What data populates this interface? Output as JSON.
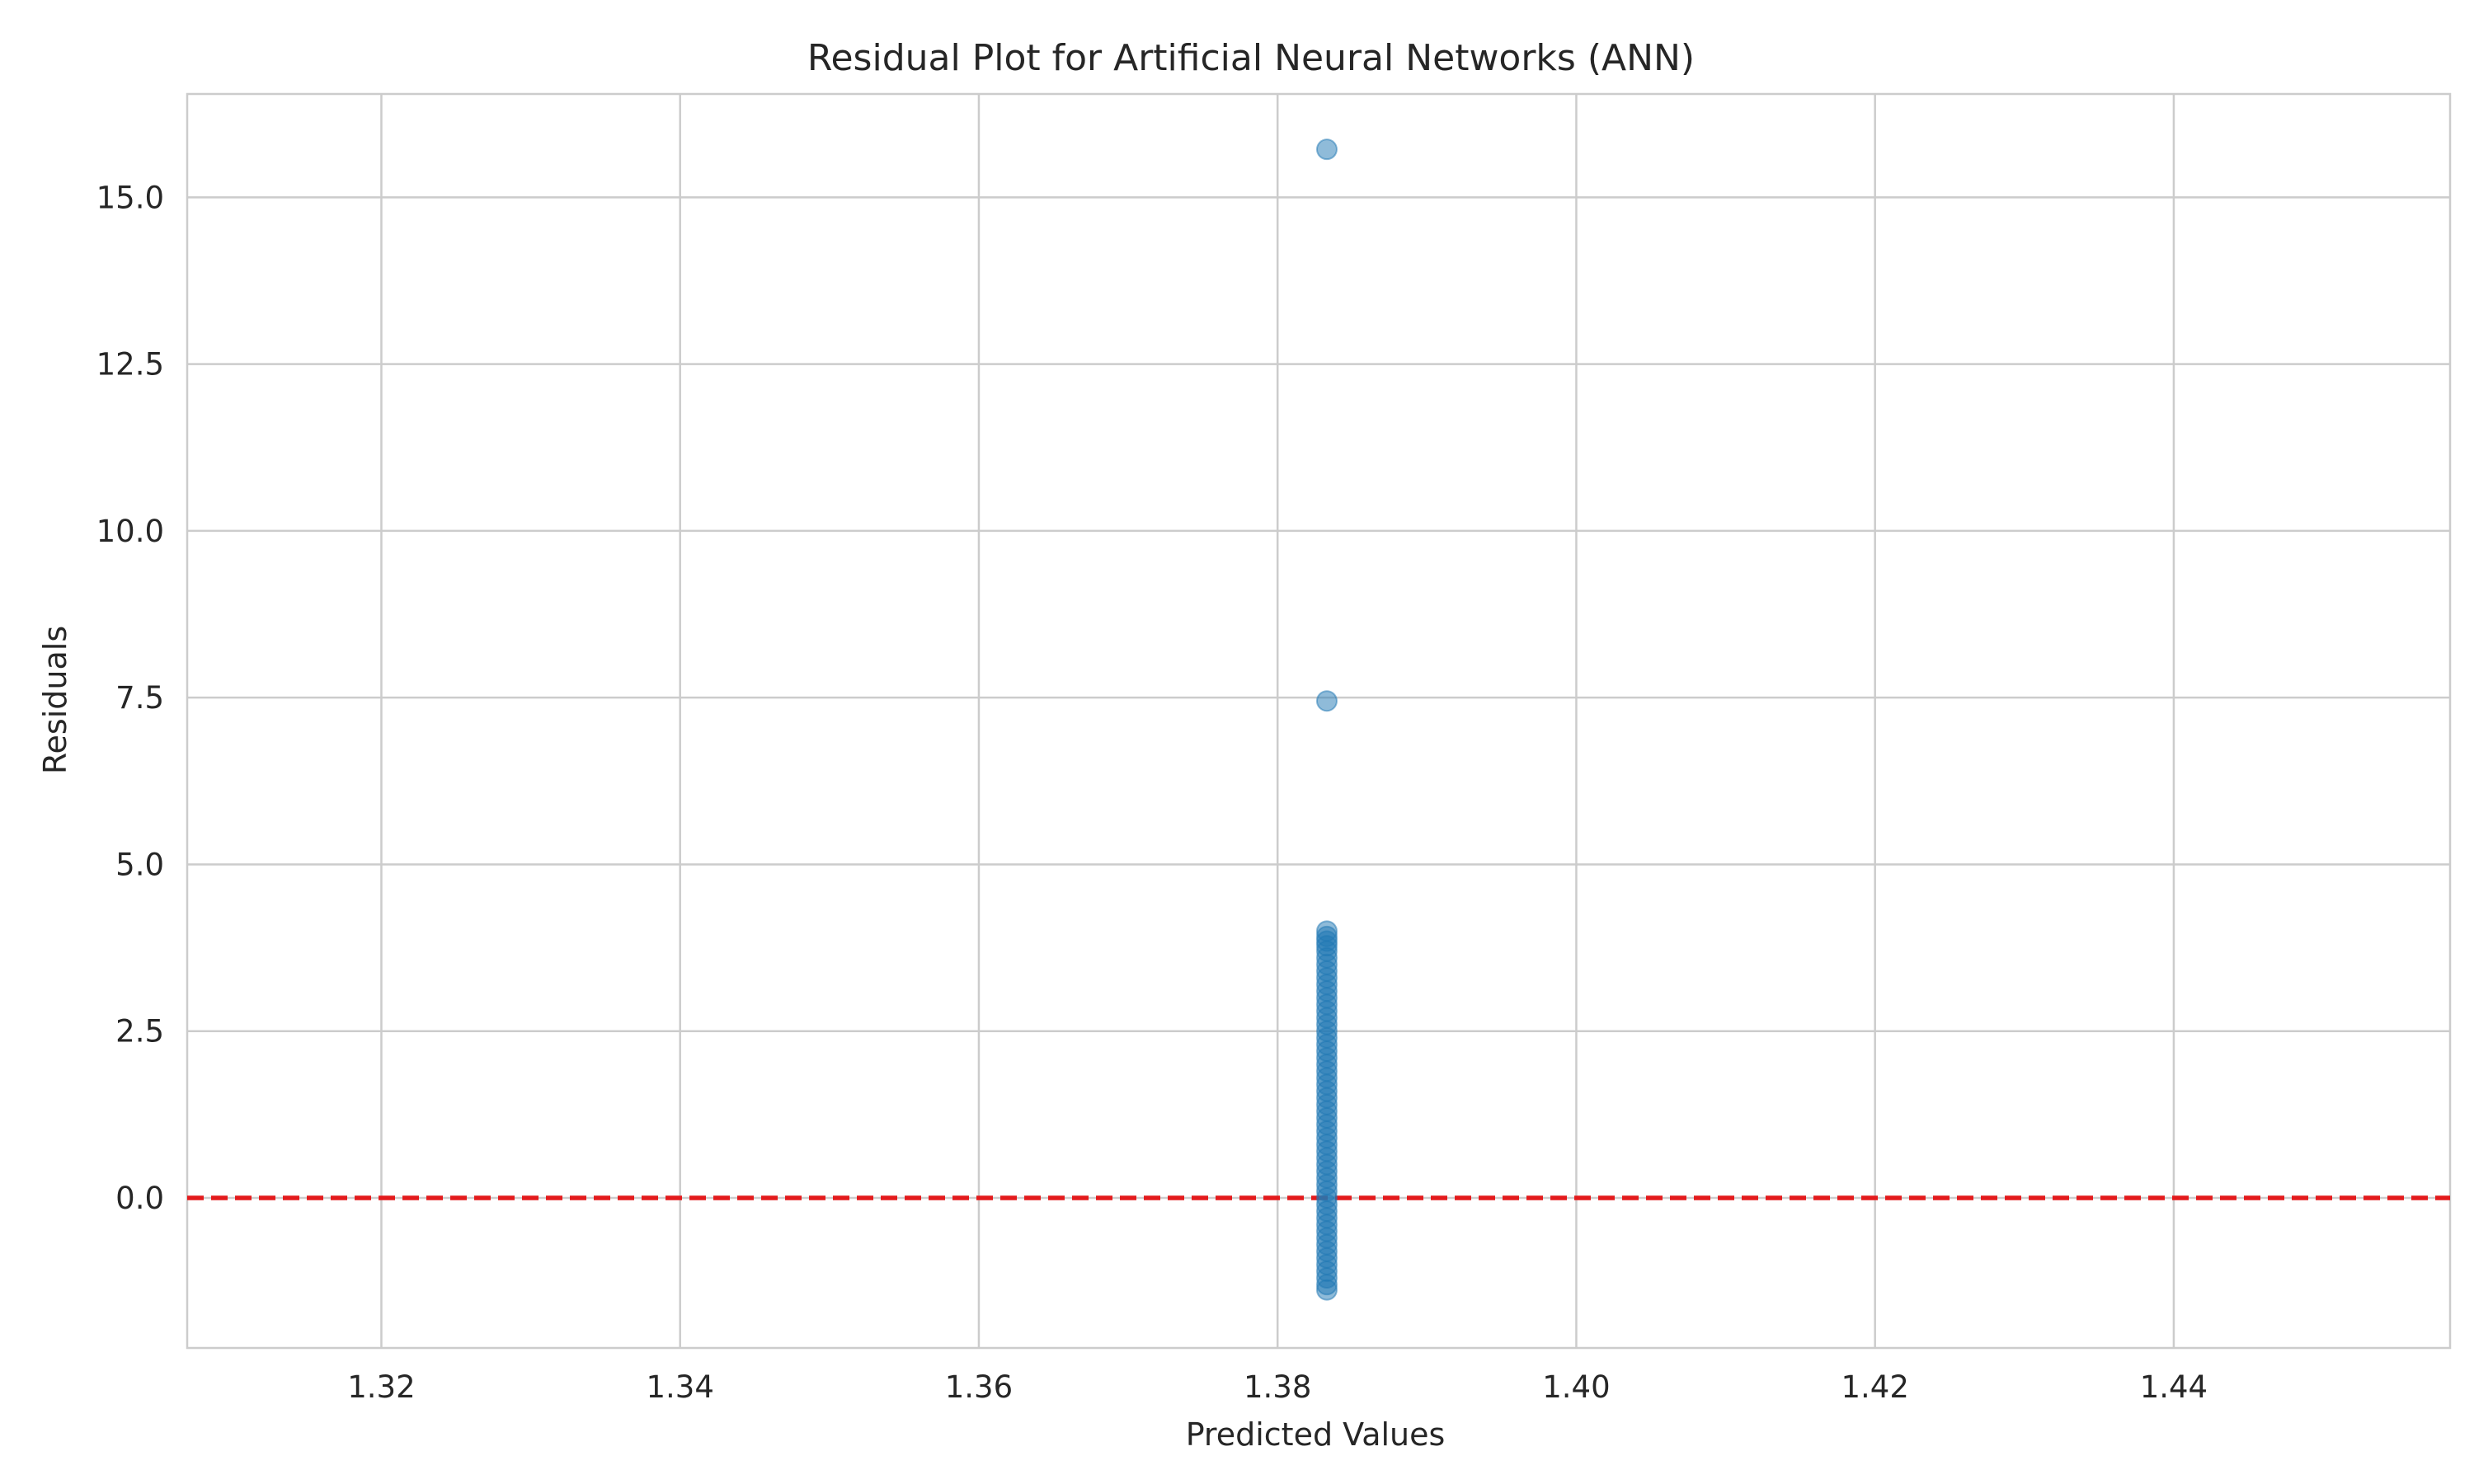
{
  "chart_data": {
    "type": "scatter",
    "title": "Residual Plot for Artificial Neural Networks (ANN)",
    "xlabel": "Predicted Values",
    "ylabel": "Residuals",
    "xlim": [
      1.307,
      1.4585
    ],
    "ylim": [
      -2.25,
      16.55
    ],
    "xticks": [
      1.32,
      1.34,
      1.36,
      1.38,
      1.4,
      1.42,
      1.44
    ],
    "xtick_labels": [
      "1.32",
      "1.34",
      "1.36",
      "1.38",
      "1.40",
      "1.42",
      "1.44"
    ],
    "yticks": [
      0.0,
      2.5,
      5.0,
      7.5,
      10.0,
      12.5,
      15.0
    ],
    "ytick_labels": [
      "0.0",
      "2.5",
      "5.0",
      "7.5",
      "10.0",
      "12.5",
      "15.0"
    ],
    "grid": true,
    "reference_line": {
      "y": 0,
      "style": "dashed",
      "color": "#e31a1c"
    },
    "point_color": "#1f77b4",
    "point_alpha": 0.5,
    "series": [
      {
        "name": "Residuals",
        "x_constant": 1.3833,
        "y": [
          15.72,
          7.45,
          4.0,
          3.92,
          3.85,
          3.78,
          3.7,
          3.6,
          3.5,
          3.4,
          3.3,
          3.2,
          3.1,
          3.0,
          2.9,
          2.8,
          2.7,
          2.6,
          2.5,
          2.4,
          2.3,
          2.2,
          2.1,
          2.0,
          1.9,
          1.8,
          1.7,
          1.6,
          1.5,
          1.4,
          1.3,
          1.2,
          1.1,
          1.0,
          0.9,
          0.8,
          0.7,
          0.6,
          0.5,
          0.4,
          0.3,
          0.2,
          0.1,
          0.0,
          -0.1,
          -0.2,
          -0.3,
          -0.4,
          -0.5,
          -0.6,
          -0.7,
          -0.8,
          -0.9,
          -1.0,
          -1.1,
          -1.2,
          -1.3,
          -1.38
        ]
      }
    ]
  }
}
